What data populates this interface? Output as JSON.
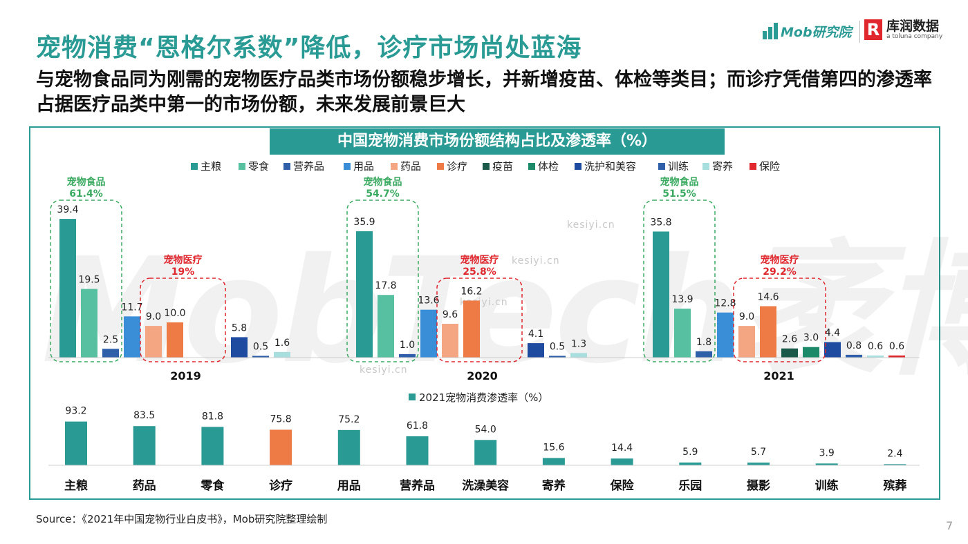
{
  "header": {
    "title": "宠物消费“恩格尔系数”降低，诊疗市场尚处蓝海",
    "subtitle": "与宠物食品同为刚需的宠物医疗品类市场份额稳步增长，并新增疫苗、体检等类目；而诊疗凭借第四的渗透率占据医疗品类中第一的市场份额，未来发展前景巨大"
  },
  "logos": {
    "mob": "Mob研究院",
    "kr_mark": "R",
    "kr_name": "库润数据",
    "kr_sub": "a toluna company"
  },
  "watermarks": {
    "big": "MobTech袤博",
    "small": "kesiyi.cn"
  },
  "colors": {
    "accent": "#2a9a94",
    "highlight_red": "#e0272e"
  },
  "chart_data": [
    {
      "type": "bar",
      "title": "中国宠物消费市场份额结构占比及渗透率（%）",
      "categories": [
        "2019",
        "2020",
        "2021"
      ],
      "series": [
        {
          "name": "主粮",
          "color": "#2a9a94",
          "values": [
            39.4,
            35.9,
            35.8
          ]
        },
        {
          "name": "零食",
          "color": "#56c0a0",
          "values": [
            19.5,
            17.8,
            13.9
          ]
        },
        {
          "name": "营养品",
          "color": "#2e5fa8",
          "values": [
            2.5,
            1.0,
            1.8
          ]
        },
        {
          "name": "用品",
          "color": "#3a8ed8",
          "values": [
            11.7,
            13.6,
            12.8
          ]
        },
        {
          "name": "药品",
          "color": "#f4a582",
          "values": [
            9.0,
            9.6,
            9.0
          ]
        },
        {
          "name": "诊疗",
          "color": "#ee7a46",
          "values": [
            10.0,
            16.2,
            14.6
          ]
        },
        {
          "name": "疫苗",
          "color": "#1b5a4a",
          "values": [
            null,
            null,
            2.6
          ]
        },
        {
          "name": "体检",
          "color": "#1c8a68",
          "values": [
            null,
            null,
            3.0
          ]
        },
        {
          "name": "洗护和美容",
          "color": "#1e4aa0",
          "values": [
            5.8,
            4.1,
            4.4
          ]
        },
        {
          "name": "训练",
          "color": "#2e5fa8",
          "values": [
            0.5,
            0.5,
            0.8
          ]
        },
        {
          "name": "寄养",
          "color": "#a8dede",
          "values": [
            1.6,
            1.3,
            0.6
          ]
        },
        {
          "name": "保险",
          "color": "#e0272e",
          "values": [
            null,
            null,
            0.6
          ]
        }
      ],
      "annotations": [
        {
          "label": "宠物食品",
          "value": "61.4%",
          "year": "2019",
          "group": "food"
        },
        {
          "label": "宠物医疗",
          "value": "19%",
          "year": "2019",
          "group": "medical"
        },
        {
          "label": "宠物食品",
          "value": "54.7%",
          "year": "2020",
          "group": "food"
        },
        {
          "label": "宠物医疗",
          "value": "25.8%",
          "year": "2020",
          "group": "medical"
        },
        {
          "label": "宠物食品",
          "value": "51.5%",
          "year": "2021",
          "group": "food"
        },
        {
          "label": "宠物医疗",
          "value": "29.2%",
          "year": "2021",
          "group": "medical"
        }
      ]
    },
    {
      "type": "bar",
      "legend": "2021宠物消费渗透率（%）",
      "categories": [
        "主粮",
        "药品",
        "零食",
        "诊疗",
        "用品",
        "营养品",
        "洗澡美容",
        "寄养",
        "保险",
        "乐园",
        "摄影",
        "训练",
        "殡葬"
      ],
      "values": [
        93.2,
        83.5,
        81.8,
        75.8,
        75.2,
        61.8,
        54.0,
        15.6,
        14.4,
        5.9,
        5.7,
        3.9,
        2.4
      ],
      "labels": [
        "93.2",
        "83.5",
        "81.8",
        "75.8",
        "75.2",
        "61.8",
        "54.0",
        "15.6",
        "14.4",
        "5.9",
        "5.7",
        "3.9",
        "2.4"
      ],
      "highlight": "诊疗",
      "color": "#2a9a94",
      "highlight_color": "#ee7a46"
    }
  ],
  "footer": {
    "source": "Source：《2021年中国宠物行业白皮书》，Mob研究院整理绘制",
    "page": "7"
  }
}
